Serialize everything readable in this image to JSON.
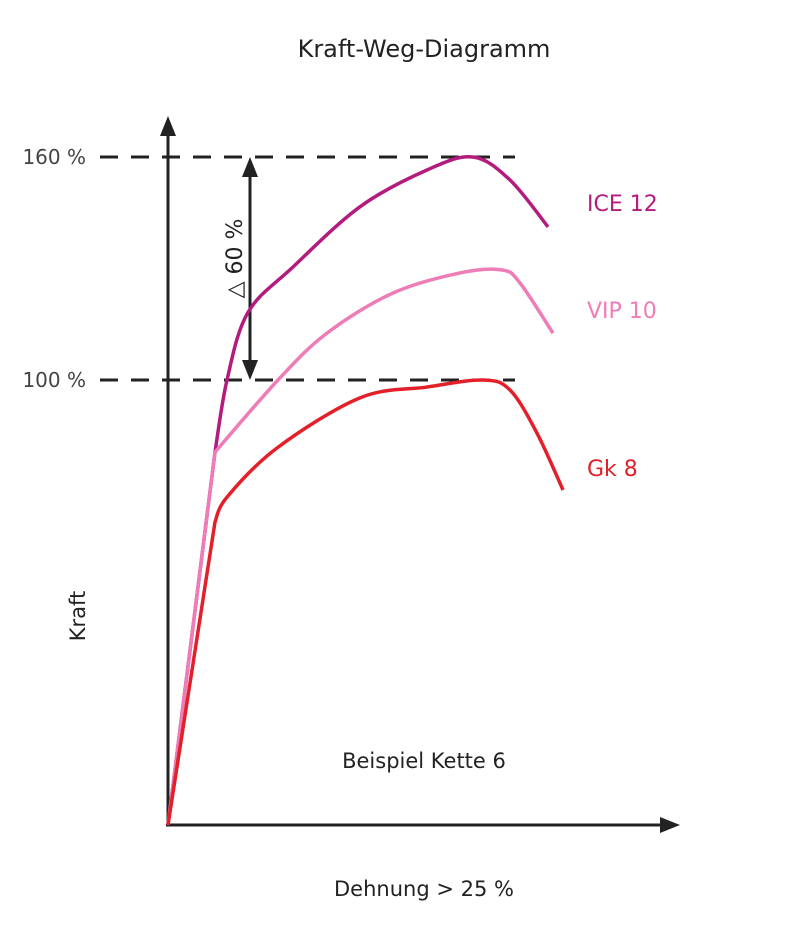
{
  "chart_data": {
    "type": "line",
    "title": "Kraft-Weg-Diagramm",
    "xlabel": "Dehnung > 25 %",
    "ylabel": "Kraft",
    "annotation": "Beispiel Kette 6",
    "delta_label": "△ 60 %",
    "xlim": [
      0,
      128
    ],
    "ylim": [
      -19.7,
      170.5
    ],
    "grid": false,
    "reference_lines": [
      {
        "value": 160,
        "label": "160 %"
      },
      {
        "value": 100,
        "label": "100 %"
      }
    ],
    "delta": {
      "from": 100,
      "to": 160
    },
    "series": [
      {
        "name": "ICE 12",
        "color": "#b31b7e",
        "points": [
          [
            0,
            -19.7
          ],
          [
            11.75,
            80.6
          ],
          [
            14.75,
            100
          ],
          [
            20,
            118.2
          ],
          [
            31.25,
            130.4
          ],
          [
            48,
            146.6
          ],
          [
            64.75,
            156.5
          ],
          [
            76.25,
            160
          ],
          [
            85.5,
            153.8
          ],
          [
            95,
            141.2
          ]
        ]
      },
      {
        "name": "VIP 10",
        "color": "#ee7cb6",
        "points": [
          [
            0,
            -19.7
          ],
          [
            11.75,
            80.6
          ],
          [
            27.5,
            100
          ],
          [
            39.75,
            112.6
          ],
          [
            56.25,
            123.4
          ],
          [
            73,
            128.8
          ],
          [
            83.5,
            129.6
          ],
          [
            88,
            126.1
          ],
          [
            96.25,
            112.6
          ]
        ]
      },
      {
        "name": "Gk 8",
        "color": "#e3202a",
        "points": [
          [
            0,
            -19.7
          ],
          [
            11.75,
            61.8
          ],
          [
            14.75,
            68.5
          ],
          [
            27.25,
            81.7
          ],
          [
            48,
            95.2
          ],
          [
            64.75,
            98.1
          ],
          [
            78.75,
            100
          ],
          [
            85.5,
            97.3
          ],
          [
            92.25,
            85.7
          ],
          [
            98.75,
            70.4
          ]
        ]
      }
    ]
  }
}
